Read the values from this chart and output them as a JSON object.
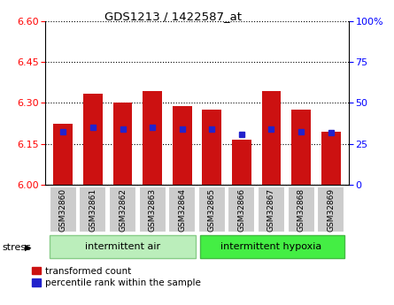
{
  "title": "GDS1213 / 1422587_at",
  "samples": [
    "GSM32860",
    "GSM32861",
    "GSM32862",
    "GSM32863",
    "GSM32864",
    "GSM32865",
    "GSM32866",
    "GSM32867",
    "GSM32868",
    "GSM32869"
  ],
  "bar_values": [
    6.225,
    6.335,
    6.3,
    6.345,
    6.29,
    6.275,
    6.165,
    6.345,
    6.275,
    6.195
  ],
  "percentile_values": [
    6.195,
    6.21,
    6.205,
    6.21,
    6.205,
    6.205,
    6.185,
    6.205,
    6.195,
    6.19
  ],
  "y_min": 6.0,
  "y_max": 6.6,
  "y_ticks_left": [
    6.0,
    6.15,
    6.3,
    6.45,
    6.6
  ],
  "y_ticks_right": [
    0,
    25,
    50,
    75,
    100
  ],
  "bar_color": "#cc1111",
  "percentile_color": "#2222cc",
  "group1_label": "intermittent air",
  "group2_label": "intermittent hypoxia",
  "group1_indices": [
    0,
    1,
    2,
    3,
    4
  ],
  "group2_indices": [
    5,
    6,
    7,
    8,
    9
  ],
  "group_bg_color_1": "#bbeebb",
  "group_bg_color_2": "#44ee44",
  "label_bg_color": "#cccccc",
  "stress_label": "stress",
  "legend_red_label": "transformed count",
  "legend_blue_label": "percentile rank within the sample"
}
